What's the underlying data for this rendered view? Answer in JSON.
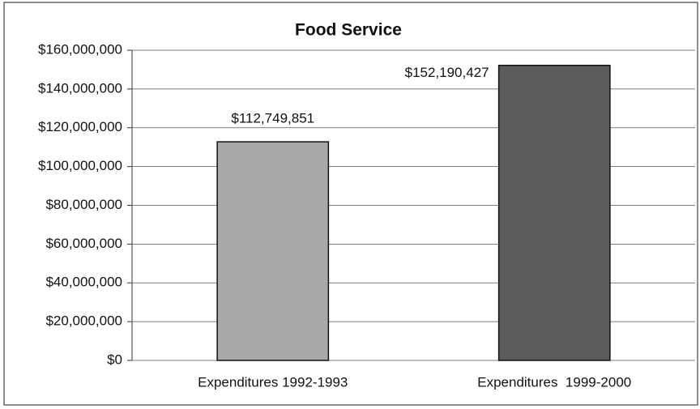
{
  "chart_data": {
    "type": "bar",
    "title": "Food Service",
    "categories": [
      "Expenditures 1992-1993",
      "Expenditures  1999-2000"
    ],
    "values": [
      112749851,
      152190427
    ],
    "value_labels": [
      "$112,749,851",
      "$152,190,427"
    ],
    "colors": [
      "#a9a9a9",
      "#5b5b5b"
    ],
    "ylim": [
      0,
      160000000
    ],
    "yticks": [
      {
        "value": 0,
        "label": "$0"
      },
      {
        "value": 20000000,
        "label": "$20,000,000"
      },
      {
        "value": 40000000,
        "label": "$40,000,000"
      },
      {
        "value": 60000000,
        "label": "$60,000,000"
      },
      {
        "value": 80000000,
        "label": "$80,000,000"
      },
      {
        "value": 100000000,
        "label": "$100,000,000"
      },
      {
        "value": 120000000,
        "label": "$120,000,000"
      },
      {
        "value": 140000000,
        "label": "$140,000,000"
      },
      {
        "value": 160000000,
        "label": "$160,000,000"
      }
    ],
    "grid": true
  }
}
